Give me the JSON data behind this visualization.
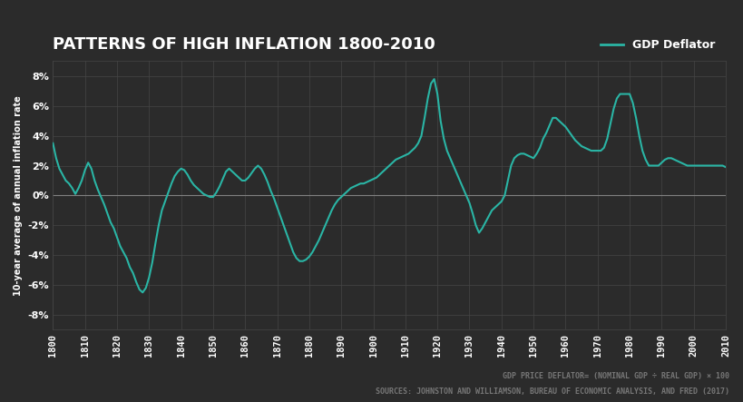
{
  "title": "PATTERNS OF HIGH INFLATION 1800-2010",
  "ylabel": "10-year average of annual inflation rate",
  "legend_label": "GDP Deflator",
  "footnote1": "GDP PRICE DEFLATOR= (NOMINAL GDP ÷ REAL GDP) × 100",
  "footnote2": "SOURCES: JOHNSTON AND WILLIAMSON, BUREAU OF ECONOMIC ANALYSIS, AND FRED (2017)",
  "bg_color": "#2b2b2b",
  "line_color": "#2ab5a5",
  "grid_color": "#454545",
  "zero_line_color": "#808080",
  "text_color": "#ffffff",
  "footnote_color": "#777777",
  "xlim": [
    1800,
    2010
  ],
  "ylim": [
    -0.09,
    0.09
  ],
  "xticks": [
    1800,
    1810,
    1820,
    1830,
    1840,
    1850,
    1860,
    1870,
    1880,
    1890,
    1900,
    1910,
    1920,
    1930,
    1940,
    1950,
    1960,
    1970,
    1980,
    1990,
    2000,
    2010
  ],
  "yticks": [
    -0.08,
    -0.06,
    -0.04,
    -0.02,
    0.0,
    0.02,
    0.04,
    0.06,
    0.08
  ],
  "years": [
    1800,
    1801,
    1802,
    1803,
    1804,
    1805,
    1806,
    1807,
    1808,
    1809,
    1810,
    1811,
    1812,
    1813,
    1814,
    1815,
    1816,
    1817,
    1818,
    1819,
    1820,
    1821,
    1822,
    1823,
    1824,
    1825,
    1826,
    1827,
    1828,
    1829,
    1830,
    1831,
    1832,
    1833,
    1834,
    1835,
    1836,
    1837,
    1838,
    1839,
    1840,
    1841,
    1842,
    1843,
    1844,
    1845,
    1846,
    1847,
    1848,
    1849,
    1850,
    1851,
    1852,
    1853,
    1854,
    1855,
    1856,
    1857,
    1858,
    1859,
    1860,
    1861,
    1862,
    1863,
    1864,
    1865,
    1866,
    1867,
    1868,
    1869,
    1870,
    1871,
    1872,
    1873,
    1874,
    1875,
    1876,
    1877,
    1878,
    1879,
    1880,
    1881,
    1882,
    1883,
    1884,
    1885,
    1886,
    1887,
    1888,
    1889,
    1890,
    1891,
    1892,
    1893,
    1894,
    1895,
    1896,
    1897,
    1898,
    1899,
    1900,
    1901,
    1902,
    1903,
    1904,
    1905,
    1906,
    1907,
    1908,
    1909,
    1910,
    1911,
    1912,
    1913,
    1914,
    1915,
    1916,
    1917,
    1918,
    1919,
    1920,
    1921,
    1922,
    1923,
    1924,
    1925,
    1926,
    1927,
    1928,
    1929,
    1930,
    1931,
    1932,
    1933,
    1934,
    1935,
    1936,
    1937,
    1938,
    1939,
    1940,
    1941,
    1942,
    1943,
    1944,
    1945,
    1946,
    1947,
    1948,
    1949,
    1950,
    1951,
    1952,
    1953,
    1954,
    1955,
    1956,
    1957,
    1958,
    1959,
    1960,
    1961,
    1962,
    1963,
    1964,
    1965,
    1966,
    1967,
    1968,
    1969,
    1970,
    1971,
    1972,
    1973,
    1974,
    1975,
    1976,
    1977,
    1978,
    1979,
    1980,
    1981,
    1982,
    1983,
    1984,
    1985,
    1986,
    1987,
    1988,
    1989,
    1990,
    1991,
    1992,
    1993,
    1994,
    1995,
    1996,
    1997,
    1998,
    1999,
    2000,
    2001,
    2002,
    2003,
    2004,
    2005,
    2006,
    2007,
    2008,
    2009,
    2010
  ],
  "values": [
    0.035,
    0.025,
    0.018,
    0.014,
    0.01,
    0.008,
    0.005,
    0.001,
    0.005,
    0.01,
    0.017,
    0.022,
    0.018,
    0.01,
    0.004,
    -0.001,
    -0.006,
    -0.012,
    -0.018,
    -0.022,
    -0.028,
    -0.034,
    -0.038,
    -0.042,
    -0.048,
    -0.052,
    -0.058,
    -0.063,
    -0.065,
    -0.062,
    -0.055,
    -0.045,
    -0.032,
    -0.02,
    -0.01,
    -0.004,
    0.002,
    0.008,
    0.013,
    0.016,
    0.018,
    0.017,
    0.014,
    0.01,
    0.007,
    0.005,
    0.003,
    0.001,
    0.0,
    -0.001,
    -0.001,
    0.002,
    0.006,
    0.011,
    0.016,
    0.018,
    0.016,
    0.014,
    0.012,
    0.01,
    0.01,
    0.012,
    0.015,
    0.018,
    0.02,
    0.018,
    0.014,
    0.009,
    0.003,
    -0.002,
    -0.008,
    -0.014,
    -0.02,
    -0.026,
    -0.032,
    -0.038,
    -0.042,
    -0.044,
    -0.044,
    -0.043,
    -0.041,
    -0.038,
    -0.034,
    -0.03,
    -0.025,
    -0.02,
    -0.015,
    -0.01,
    -0.006,
    -0.003,
    -0.001,
    0.001,
    0.003,
    0.005,
    0.006,
    0.007,
    0.008,
    0.008,
    0.009,
    0.01,
    0.011,
    0.012,
    0.014,
    0.016,
    0.018,
    0.02,
    0.022,
    0.024,
    0.025,
    0.026,
    0.027,
    0.028,
    0.03,
    0.032,
    0.035,
    0.04,
    0.052,
    0.065,
    0.075,
    0.078,
    0.068,
    0.05,
    0.038,
    0.03,
    0.025,
    0.02,
    0.015,
    0.01,
    0.005,
    0.0,
    -0.005,
    -0.012,
    -0.02,
    -0.025,
    -0.022,
    -0.018,
    -0.014,
    -0.01,
    -0.008,
    -0.006,
    -0.004,
    0.0,
    0.01,
    0.02,
    0.025,
    0.027,
    0.028,
    0.028,
    0.027,
    0.026,
    0.025,
    0.028,
    0.032,
    0.038,
    0.042,
    0.047,
    0.052,
    0.052,
    0.05,
    0.048,
    0.046,
    0.043,
    0.04,
    0.037,
    0.035,
    0.033,
    0.032,
    0.031,
    0.03,
    0.03,
    0.03,
    0.03,
    0.032,
    0.038,
    0.048,
    0.058,
    0.065,
    0.068,
    0.068,
    0.068,
    0.068,
    0.062,
    0.052,
    0.04,
    0.03,
    0.024,
    0.02,
    0.02,
    0.02,
    0.02,
    0.022,
    0.024,
    0.025,
    0.025,
    0.024,
    0.023,
    0.022,
    0.021,
    0.02,
    0.02,
    0.02,
    0.02,
    0.02,
    0.02,
    0.02,
    0.02,
    0.02,
    0.02,
    0.02,
    0.02,
    0.019
  ]
}
